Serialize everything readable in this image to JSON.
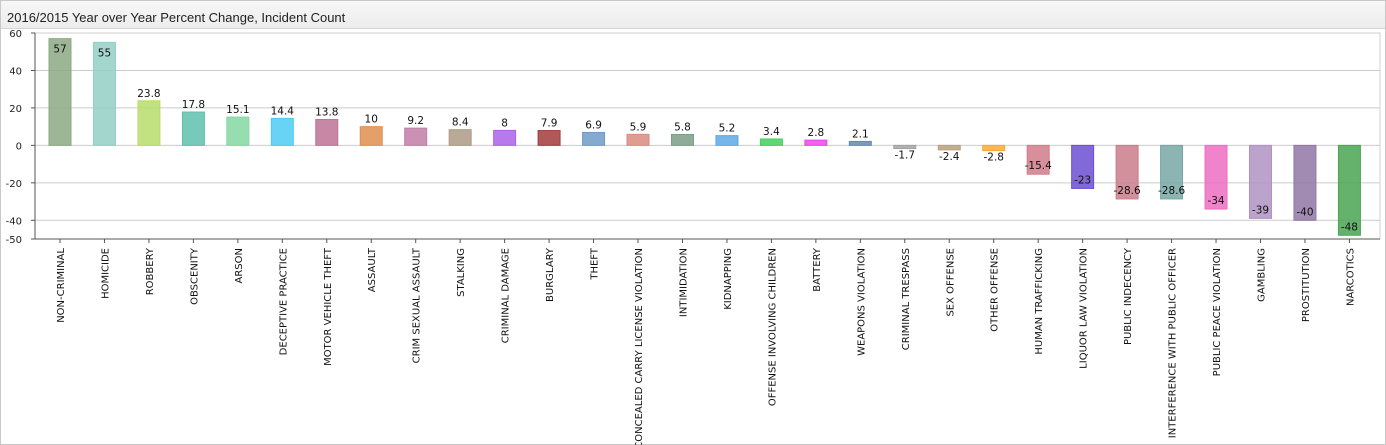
{
  "title": "2016/2015 Year over Year Percent Change, Incident Count",
  "chart_data": {
    "type": "bar",
    "ylim": [
      -50,
      60
    ],
    "yticks": [
      60,
      40,
      20,
      0,
      -20,
      -40,
      -50
    ],
    "grid": true,
    "categories": [
      "NON-CRIMINAL",
      "HOMICIDE",
      "ROBBERY",
      "OBSCENITY",
      "ARSON",
      "DECEPTIVE PRACTICE",
      "MOTOR VEHICLE THEFT",
      "ASSAULT",
      "CRIM SEXUAL ASSAULT",
      "STALKING",
      "CRIMINAL DAMAGE",
      "BURGLARY",
      "THEFT",
      "CONCEALED CARRY LICENSE VIOLATION",
      "INTIMIDATION",
      "KIDNAPPING",
      "OFFENSE INVOLVING CHILDREN",
      "BATTERY",
      "WEAPONS VIOLATION",
      "CRIMINAL TRESPASS",
      "SEX OFFENSE",
      "OTHER OFFENSE",
      "HUMAN TRAFFICKING",
      "LIQUOR LAW VIOLATION",
      "PUBLIC INDECENCY",
      "INTERFERENCE WITH PUBLIC OFFICER",
      "PUBLIC PEACE VIOLATION",
      "GAMBLING",
      "PROSTITUTION",
      "NARCOTICS"
    ],
    "values": [
      57,
      55,
      23.8,
      17.8,
      15.1,
      14.4,
      13.8,
      10,
      9.2,
      8.4,
      8,
      7.9,
      6.9,
      5.9,
      5.8,
      5.2,
      3.4,
      2.8,
      2.1,
      -1.7,
      -2.4,
      -2.8,
      -15.4,
      -23,
      -28.6,
      -28.6,
      -34,
      -39,
      -40,
      -48
    ],
    "labels": [
      "57",
      "55",
      "23.8",
      "17.8",
      "15.1",
      "14.4",
      "13.8",
      "10",
      "9.2",
      "8.4",
      "8",
      "7.9",
      "6.9",
      "5.9",
      "5.8",
      "5.2",
      "3.4",
      "2.8",
      "2.1",
      "-1.7",
      "-2.4",
      "-2.8",
      "-15.4",
      "-23",
      "-28.6",
      "-28.6",
      "-34",
      "-39",
      "-40",
      "-48"
    ],
    "colors": [
      "#8caa84",
      "#93cfc4",
      "#b7dd6b",
      "#5fbfae",
      "#84d8a1",
      "#4dcbf2",
      "#c07296",
      "#e08f4f",
      "#c27ea8",
      "#ad9b85",
      "#ad62e8",
      "#a33b3b",
      "#6f9cc7",
      "#d98c7f",
      "#7a9e86",
      "#5ca9e6",
      "#45cf5c",
      "#f044f0",
      "#6688b6",
      "#a3a3a3",
      "#b9a17d",
      "#fba930",
      "#d07c89",
      "#6b4fd4",
      "#c97d8a",
      "#77a7a5",
      "#ec6fc2",
      "#b093c2",
      "#9277a6",
      "#4aa552"
    ]
  }
}
